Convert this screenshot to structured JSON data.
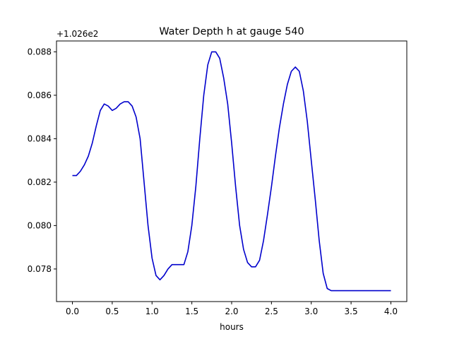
{
  "chart_data": {
    "type": "line",
    "title": "Water Depth h at gauge 540",
    "xlabel": "hours",
    "ylabel": "",
    "offset_label": "+1.026e2",
    "xlim": [
      -0.2,
      4.2
    ],
    "ylim": [
      0.0765,
      0.0885
    ],
    "xticks": [
      0.0,
      0.5,
      1.0,
      1.5,
      2.0,
      2.5,
      3.0,
      3.5,
      4.0
    ],
    "xtick_labels": [
      "0.0",
      "0.5",
      "1.0",
      "1.5",
      "2.0",
      "2.5",
      "3.0",
      "3.5",
      "4.0"
    ],
    "yticks": [
      0.078,
      0.08,
      0.082,
      0.084,
      0.086,
      0.088
    ],
    "ytick_labels": [
      "0.078",
      "0.080",
      "0.082",
      "0.084",
      "0.086",
      "0.088"
    ],
    "grid": false,
    "series": [
      {
        "color": "#0000cc",
        "x": [
          0.0,
          0.05,
          0.1,
          0.15,
          0.2,
          0.25,
          0.3,
          0.35,
          0.4,
          0.45,
          0.5,
          0.55,
          0.6,
          0.65,
          0.7,
          0.75,
          0.8,
          0.85,
          0.9,
          0.95,
          1.0,
          1.05,
          1.1,
          1.15,
          1.2,
          1.25,
          1.3,
          1.35,
          1.4,
          1.45,
          1.5,
          1.55,
          1.6,
          1.65,
          1.7,
          1.75,
          1.8,
          1.85,
          1.9,
          1.95,
          2.0,
          2.05,
          2.1,
          2.15,
          2.2,
          2.25,
          2.3,
          2.35,
          2.4,
          2.45,
          2.5,
          2.55,
          2.6,
          2.65,
          2.7,
          2.75,
          2.8,
          2.85,
          2.9,
          2.95,
          3.0,
          3.05,
          3.1,
          3.15,
          3.2,
          3.25,
          3.3,
          3.35,
          3.4,
          3.45,
          3.5,
          3.55,
          3.6,
          3.65,
          3.7,
          3.75,
          3.8,
          3.85,
          3.9,
          3.95,
          4.0
        ],
        "y": [
          0.0823,
          0.0823,
          0.0825,
          0.0828,
          0.0832,
          0.0838,
          0.0846,
          0.0853,
          0.0856,
          0.0855,
          0.0853,
          0.0854,
          0.0856,
          0.0857,
          0.0857,
          0.0855,
          0.085,
          0.084,
          0.082,
          0.08,
          0.0785,
          0.0777,
          0.0775,
          0.0777,
          0.078,
          0.0782,
          0.0782,
          0.0782,
          0.0782,
          0.0788,
          0.08,
          0.0818,
          0.084,
          0.086,
          0.0874,
          0.088,
          0.088,
          0.0877,
          0.0868,
          0.0856,
          0.0838,
          0.0818,
          0.08,
          0.0789,
          0.0783,
          0.0781,
          0.0781,
          0.0784,
          0.0793,
          0.0805,
          0.0818,
          0.0832,
          0.0845,
          0.0856,
          0.0865,
          0.0871,
          0.0873,
          0.0871,
          0.0862,
          0.0848,
          0.083,
          0.0812,
          0.0793,
          0.0778,
          0.0771,
          0.077,
          0.077,
          0.077,
          0.077,
          0.077,
          0.077,
          0.077,
          0.077,
          0.077,
          0.077,
          0.077,
          0.077,
          0.077,
          0.077,
          0.077,
          0.077
        ]
      }
    ]
  }
}
